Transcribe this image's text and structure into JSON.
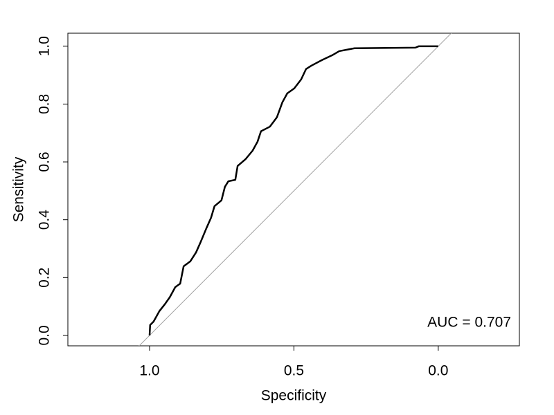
{
  "chart_data": {
    "type": "line",
    "xlabel": "Specificity",
    "ylabel": "Sensitivity",
    "annotation": "AUC = 0.707",
    "x": [
      1.0,
      0.998,
      0.986,
      0.966,
      0.947,
      0.93,
      0.911,
      0.894,
      0.882,
      0.859,
      0.839,
      0.823,
      0.803,
      0.787,
      0.775,
      0.751,
      0.739,
      0.727,
      0.703,
      0.695,
      0.667,
      0.643,
      0.626,
      0.614,
      0.583,
      0.559,
      0.54,
      0.523,
      0.499,
      0.475,
      0.458,
      0.439,
      0.403,
      0.367,
      0.343,
      0.29,
      0.079,
      0.067,
      0.0
    ],
    "series": [
      {
        "color": "#000000",
        "values": [
          0,
          0.036,
          0.048,
          0.084,
          0.108,
          0.132,
          0.167,
          0.179,
          0.239,
          0.256,
          0.287,
          0.323,
          0.371,
          0.407,
          0.447,
          0.467,
          0.514,
          0.533,
          0.538,
          0.586,
          0.61,
          0.639,
          0.67,
          0.706,
          0.722,
          0.754,
          0.806,
          0.837,
          0.854,
          0.885,
          0.921,
          0.933,
          0.952,
          0.969,
          0.983,
          0.993,
          0.995,
          1.0,
          1.0
        ]
      }
    ],
    "xlim": [
      1.283,
      -0.281
    ],
    "ylim": [
      -0.036,
      1.045
    ],
    "xticks": [
      {
        "value": 1,
        "label": "1.0"
      },
      0.5,
      {
        "value": 0,
        "label": "0.0"
      }
    ],
    "yticks": [
      {
        "value": 0,
        "label": "0.0"
      },
      0.2,
      0.4,
      0.6,
      0.8,
      {
        "value": 1,
        "label": "1.0"
      }
    ],
    "reference_color": "#a0a0a0"
  }
}
